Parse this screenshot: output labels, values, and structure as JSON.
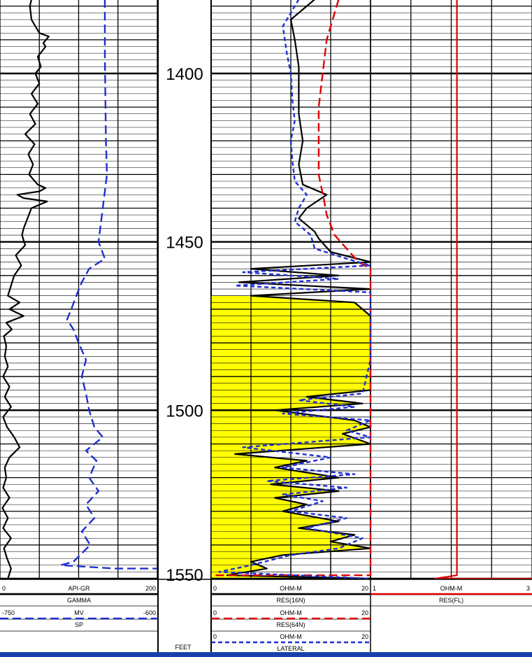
{
  "chart_data": {
    "type": "line",
    "depth_unit": "FEET",
    "depth_range": [
      1378,
      1550
    ],
    "depth_ticks": [
      "1400",
      "1450",
      "1500",
      "1550"
    ],
    "tracks": [
      {
        "name": "track-1",
        "curves": [
          {
            "name": "GAMMA",
            "unit": "API-GR",
            "min": "0",
            "max": "200",
            "min_value": 0,
            "max_value": 200,
            "color": "#000000",
            "style": "solid",
            "samples": [
              [
                1378,
                40
              ],
              [
                1380,
                38
              ],
              [
                1384,
                40
              ],
              [
                1388,
                50
              ],
              [
                1389,
                62
              ],
              [
                1391,
                55
              ],
              [
                1392,
                58
              ],
              [
                1395,
                48
              ],
              [
                1398,
                52
              ],
              [
                1400,
                45
              ],
              [
                1403,
                50
              ],
              [
                1406,
                40
              ],
              [
                1409,
                48
              ],
              [
                1412,
                38
              ],
              [
                1415,
                45
              ],
              [
                1418,
                32
              ],
              [
                1421,
                44
              ],
              [
                1424,
                36
              ],
              [
                1427,
                42
              ],
              [
                1430,
                37
              ],
              [
                1433,
                48
              ],
              [
                1434,
                58
              ],
              [
                1435,
                50
              ],
              [
                1436,
                22
              ],
              [
                1437,
                30
              ],
              [
                1438,
                60
              ],
              [
                1440,
                40
              ],
              [
                1443,
                35
              ],
              [
                1446,
                30
              ],
              [
                1448,
                28
              ],
              [
                1451,
                32
              ],
              [
                1454,
                20
              ],
              [
                1457,
                27
              ],
              [
                1460,
                18
              ],
              [
                1463,
                14
              ],
              [
                1466,
                10
              ],
              [
                1468,
                25
              ],
              [
                1470,
                12
              ],
              [
                1472,
                30
              ],
              [
                1474,
                8
              ],
              [
                1476,
                15
              ],
              [
                1478,
                5
              ],
              [
                1481,
                8
              ],
              [
                1484,
                6
              ],
              [
                1487,
                10
              ],
              [
                1490,
                4
              ],
              [
                1493,
                12
              ],
              [
                1496,
                6
              ],
              [
                1499,
                14
              ],
              [
                1502,
                4
              ],
              [
                1505,
                9
              ],
              [
                1508,
                18
              ],
              [
                1511,
                25
              ],
              [
                1514,
                12
              ],
              [
                1517,
                6
              ],
              [
                1520,
                8
              ],
              [
                1523,
                4
              ],
              [
                1526,
                12
              ],
              [
                1529,
                3
              ],
              [
                1532,
                10
              ],
              [
                1535,
                4
              ],
              [
                1538,
                14
              ],
              [
                1541,
                5
              ],
              [
                1544,
                9
              ],
              [
                1547,
                14
              ],
              [
                1550,
                10
              ]
            ]
          },
          {
            "name": "SP",
            "unit": "MV",
            "min": "-750",
            "max": "-600",
            "min_value": -750,
            "max_value": -600,
            "color": "#1f2fd0",
            "style": "dashed",
            "samples": [
              [
                1378,
                -650
              ],
              [
                1395,
                -650
              ],
              [
                1420,
                -649
              ],
              [
                1430,
                -648
              ],
              [
                1440,
                -652
              ],
              [
                1450,
                -656
              ],
              [
                1455,
                -650
              ],
              [
                1458,
                -665
              ],
              [
                1462,
                -672
              ],
              [
                1465,
                -676
              ],
              [
                1470,
                -682
              ],
              [
                1473,
                -686
              ],
              [
                1476,
                -680
              ],
              [
                1480,
                -675
              ],
              [
                1485,
                -668
              ],
              [
                1490,
                -672
              ],
              [
                1495,
                -668
              ],
              [
                1500,
                -665
              ],
              [
                1505,
                -660
              ],
              [
                1508,
                -652
              ],
              [
                1512,
                -668
              ],
              [
                1515,
                -658
              ],
              [
                1520,
                -665
              ],
              [
                1524,
                -656
              ],
              [
                1528,
                -668
              ],
              [
                1532,
                -660
              ],
              [
                1536,
                -672
              ],
              [
                1540,
                -664
              ],
              [
                1545,
                -680
              ],
              [
                1546,
                -692
              ],
              [
                1547,
                -640
              ],
              [
                1547,
                -600
              ]
            ]
          }
        ]
      },
      {
        "name": "track-2",
        "curves": [
          {
            "name": "RES(16N)",
            "unit": "OHM-M",
            "min": "0",
            "max": "20",
            "min_value": 0,
            "max_value": 20,
            "color": "#000000",
            "style": "solid",
            "samples": [
              [
                1378,
                13
              ],
              [
                1384,
                10
              ],
              [
                1390,
                10.5
              ],
              [
                1398,
                11
              ],
              [
                1405,
                11
              ],
              [
                1412,
                11
              ],
              [
                1420,
                11.5
              ],
              [
                1427,
                11
              ],
              [
                1433,
                11.5
              ],
              [
                1436,
                14.5
              ],
              [
                1440,
                12
              ],
              [
                1443,
                11
              ],
              [
                1447,
                13
              ],
              [
                1449,
                13.5
              ],
              [
                1453,
                15
              ],
              [
                1456,
                20
              ],
              [
                1458,
                5
              ],
              [
                1460,
                16
              ],
              [
                1462,
                3.5
              ],
              [
                1464,
                20
              ],
              [
                1466,
                5
              ],
              [
                1468,
                18
              ],
              [
                1472,
                20
              ],
              [
                1478,
                20
              ],
              [
                1484,
                20
              ],
              [
                1490,
                20
              ],
              [
                1494,
                20
              ],
              [
                1496,
                12
              ],
              [
                1498,
                19
              ],
              [
                1500,
                8
              ],
              [
                1503,
                18
              ],
              [
                1505,
                20
              ],
              [
                1507,
                16.5
              ],
              [
                1510,
                20
              ],
              [
                1513,
                3
              ],
              [
                1515,
                12
              ],
              [
                1517,
                8
              ],
              [
                1520,
                16
              ],
              [
                1522,
                7.5
              ],
              [
                1524,
                16
              ],
              [
                1526,
                8
              ],
              [
                1528,
                12
              ],
              [
                1530,
                9
              ],
              [
                1533,
                16
              ],
              [
                1535,
                11
              ],
              [
                1537,
                18
              ],
              [
                1539,
                15
              ],
              [
                1541,
                20
              ],
              [
                1543,
                9
              ],
              [
                1545,
                5
              ],
              [
                1547,
                7
              ],
              [
                1549,
                2
              ],
              [
                1550,
                20
              ]
            ]
          },
          {
            "name": "RES(64N)",
            "unit": "OHM-M",
            "min": "0",
            "max": "20",
            "min_value": 0,
            "max_value": 20,
            "color": "#e00000",
            "style": "dashed",
            "samples": [
              [
                1378,
                16
              ],
              [
                1390,
                14.5
              ],
              [
                1400,
                14
              ],
              [
                1410,
                13.5
              ],
              [
                1420,
                13.5
              ],
              [
                1430,
                13.5
              ],
              [
                1438,
                14.2
              ],
              [
                1442,
                14.5
              ],
              [
                1448,
                15.5
              ],
              [
                1452,
                17
              ],
              [
                1456,
                18.5
              ],
              [
                1458,
                20
              ],
              [
                1549,
                20
              ],
              [
                1549,
                0
              ]
            ]
          },
          {
            "name": "LATERAL",
            "unit": "OHM-M",
            "min": "0",
            "max": "20",
            "min_value": 0,
            "max_value": 20,
            "color": "#1f2fd0",
            "style": "dotted",
            "samples": [
              [
                1378,
                11
              ],
              [
                1386,
                9
              ],
              [
                1394,
                9.5
              ],
              [
                1400,
                10
              ],
              [
                1408,
                10.2
              ],
              [
                1414,
                10.5
              ],
              [
                1420,
                10
              ],
              [
                1426,
                10.2
              ],
              [
                1432,
                10.5
              ],
              [
                1436,
                12
              ],
              [
                1440,
                11
              ],
              [
                1444,
                10.5
              ],
              [
                1448,
                12.5
              ],
              [
                1452,
                13
              ],
              [
                1455,
                17
              ],
              [
                1457,
                20
              ],
              [
                1459,
                4
              ],
              [
                1461,
                16
              ],
              [
                1463,
                3
              ],
              [
                1465,
                20
              ],
              [
                1468,
                20
              ],
              [
                1475,
                20
              ],
              [
                1485,
                20
              ],
              [
                1495,
                19
              ],
              [
                1497,
                11
              ],
              [
                1499,
                18
              ],
              [
                1501,
                9
              ],
              [
                1503,
                20
              ],
              [
                1506,
                17
              ],
              [
                1508,
                20
              ],
              [
                1511,
                4
              ],
              [
                1514,
                15
              ],
              [
                1517,
                9
              ],
              [
                1519,
                18
              ],
              [
                1521,
                7
              ],
              [
                1523,
                17
              ],
              [
                1525,
                9
              ],
              [
                1527,
                14
              ],
              [
                1530,
                10
              ],
              [
                1532,
                17
              ],
              [
                1535,
                12
              ],
              [
                1538,
                19
              ],
              [
                1541,
                16
              ],
              [
                1543,
                10
              ],
              [
                1546,
                5
              ],
              [
                1548,
                1
              ],
              [
                1550,
                20
              ]
            ]
          }
        ]
      },
      {
        "name": "track-3",
        "curves": [
          {
            "name": "RES(FL)",
            "unit": "OHM-M",
            "min": "1",
            "max": "3",
            "min_value": 1,
            "max_value": 3,
            "color": "#e00000",
            "style": "solid",
            "samples": [
              [
                1378,
                2.07
              ],
              [
                1440,
                2.07
              ],
              [
                1500,
                2.07
              ],
              [
                1549,
                2.07
              ],
              [
                1550,
                1.8
              ],
              [
                1550,
                3
              ]
            ]
          }
        ]
      }
    ],
    "header": {
      "track1_rows": [
        {
          "min": "0",
          "unit": "API-GR",
          "max": "200",
          "name": "GAMMA"
        },
        {
          "min": "-750",
          "unit": "MV",
          "max": "-600",
          "name": "SP"
        }
      ],
      "depth_unit_label": "FEET",
      "track2_rows": [
        {
          "min": "0",
          "unit": "OHM-M",
          "max": "20",
          "name": "RES(16N)"
        },
        {
          "min": "0",
          "unit": "OHM-M",
          "max": "20",
          "name": "RES(64N)"
        },
        {
          "min": "0",
          "unit": "OHM-M",
          "max": "20",
          "name": "LATERAL"
        }
      ],
      "track3_rows": [
        {
          "min": "1",
          "unit": "OHM-M",
          "max": "3",
          "name": "RES(FL)"
        }
      ]
    },
    "fill": {
      "between": [
        "RES(16N)",
        "track-2-left-edge"
      ],
      "depth_range": [
        1465,
        1550
      ],
      "color": "#ffff00"
    },
    "colors": {
      "grid": "#000000",
      "fill": "#ffff00",
      "blue": "#1f2fd0",
      "red": "#e00000"
    }
  }
}
